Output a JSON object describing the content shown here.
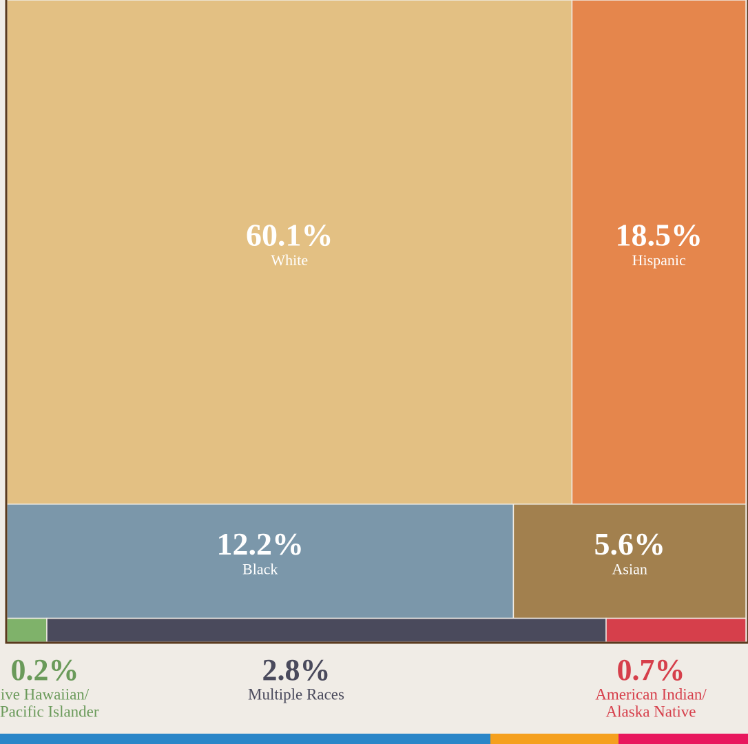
{
  "chart_data": {
    "type": "treemap",
    "categories": [
      [
        "White"
      ],
      [
        "Hispanic"
      ],
      [
        "Black"
      ],
      [
        "Asian"
      ],
      [
        "ive Hawaiian/",
        "r Pacific Islander"
      ],
      [
        "Multiple Races"
      ],
      [
        "American Indian/",
        "Alaska Native"
      ]
    ],
    "values": [
      60.1,
      18.5,
      12.2,
      5.6,
      0.2,
      2.8,
      0.7
    ],
    "value_labels": [
      "60.1%",
      "18.5%",
      "12.2%",
      "5.6%",
      "0.2%",
      "2.8%",
      "0.7%"
    ],
    "colors": [
      "#e3c083",
      "#e5864c",
      "#7b97aa",
      "#a2804e",
      "#7fb26a",
      "#4a4a5c",
      "#d63f4b"
    ],
    "label_colors": [
      "#ffffff",
      "#ffffff",
      "#ffffff",
      "#ffffff",
      "#6a9a5a",
      "#4a4a5c",
      "#d63f4b"
    ]
  }
}
